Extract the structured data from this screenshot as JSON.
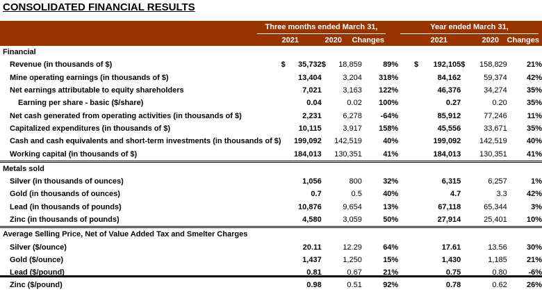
{
  "title": "CONSOLIDATED FINANCIAL RESULTS",
  "header": {
    "three_months": "Three months ended March 31,",
    "year": "Year ended March 31,",
    "c2021": "2021",
    "c2020": "2020",
    "changes": "Changes"
  },
  "currency": "$",
  "sections": [
    {
      "label": "Financial",
      "rows": [
        {
          "label": "Revenue (in thousands of $)",
          "v": [
            "35,732",
            "18,859",
            "89%",
            "192,105",
            "158,829",
            "21%"
          ],
          "dollar": true
        },
        {
          "label": "Mine operating earnings (in thousands of $)",
          "v": [
            "13,404",
            "3,204",
            "318%",
            "84,162",
            "59,374",
            "42%"
          ]
        },
        {
          "label": "Net earnings attributable to equity shareholders",
          "v": [
            "7,021",
            "3,163",
            "122%",
            "46,376",
            "34,274",
            "35%"
          ]
        },
        {
          "label": "Earning per share - basic ($/share)",
          "v": [
            "0.04",
            "0.02",
            "100%",
            "0.27",
            "0.20",
            "35%"
          ],
          "indent": true
        },
        {
          "label": "Net cash generated from operating activities (in thousands of $)",
          "v": [
            "2,231",
            "6,278",
            "-64%",
            "85,912",
            "77,246",
            "11%"
          ]
        },
        {
          "label": "Capitalized expenditures (in thousands of $)",
          "v": [
            "10,115",
            "3,917",
            "158%",
            "45,556",
            "33,671",
            "35%"
          ]
        },
        {
          "label": "Cash and cash equivalents and short-term investments (in thousands of $)",
          "v": [
            "199,092",
            "142,519",
            "40%",
            "199,092",
            "142,519",
            "40%"
          ]
        },
        {
          "label": "Working capital (in thousands of $)",
          "v": [
            "184,013",
            "130,351",
            "41%",
            "184,013",
            "130,351",
            "41%"
          ]
        }
      ]
    },
    {
      "label": "Metals sold",
      "rows": [
        {
          "label": "Silver (in thousands of ounces)",
          "v": [
            "1,056",
            "800",
            "32%",
            "6,315",
            "6,257",
            "1%"
          ]
        },
        {
          "label": "Gold (in thousands of ounces)",
          "v": [
            "0.7",
            "0.5",
            "40%",
            "4.7",
            "3.3",
            "42%"
          ]
        },
        {
          "label": "Lead (in thousands of pounds)",
          "v": [
            "10,876",
            "9,654",
            "13%",
            "67,118",
            "65,344",
            "3%"
          ]
        },
        {
          "label": "Zinc (in thousands of pounds)",
          "v": [
            "4,580",
            "3,059",
            "50%",
            "27,914",
            "25,401",
            "10%"
          ]
        }
      ]
    },
    {
      "label": "Average Selling Price, Net of Value Added Tax and Smelter Charges",
      "rows": [
        {
          "label": "Silver ($/ounce)",
          "v": [
            "20.11",
            "12.29",
            "64%",
            "17.61",
            "13.56",
            "30%"
          ]
        },
        {
          "label": "Gold ($/ounce)",
          "v": [
            "1,437",
            "1,250",
            "15%",
            "1,430",
            "1,185",
            "21%"
          ]
        },
        {
          "label": "Lead ($/pound)",
          "v": [
            "0.81",
            "0.67",
            "21%",
            "0.75",
            "0.80",
            "-6%"
          ]
        },
        {
          "label": "Zinc ($/pound)",
          "v": [
            "0.98",
            "0.51",
            "92%",
            "0.78",
            "0.62",
            "26%"
          ]
        }
      ]
    }
  ]
}
